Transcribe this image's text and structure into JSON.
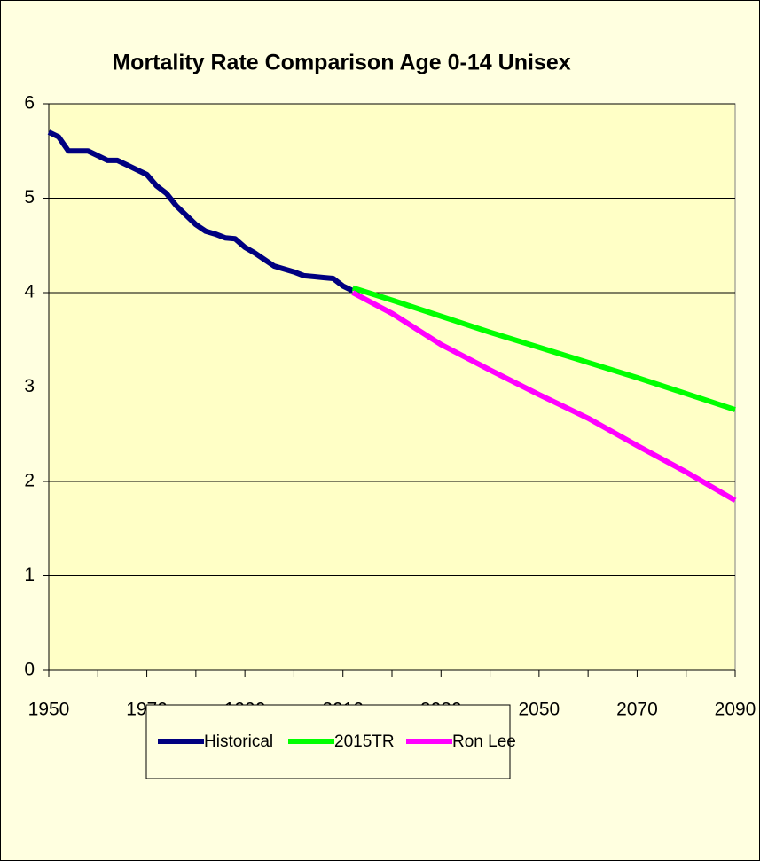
{
  "chart_data": {
    "type": "line",
    "title": "Mortality Rate Comparison Age 0-14 Unisex",
    "series": [
      {
        "name": "Historical",
        "color": "#000080",
        "x": [
          1950,
          1952,
          1954,
          1956,
          1958,
          1960,
          1962,
          1964,
          1966,
          1968,
          1970,
          1972,
          1974,
          1976,
          1978,
          1980,
          1982,
          1984,
          1986,
          1988,
          1990,
          1992,
          1994,
          1996,
          1998,
          2000,
          2002,
          2004,
          2006,
          2008,
          2010,
          2012
        ],
        "values": [
          5.7,
          5.65,
          5.5,
          5.5,
          5.5,
          5.45,
          5.4,
          5.4,
          5.35,
          5.3,
          5.25,
          5.13,
          5.05,
          4.92,
          4.82,
          4.72,
          4.65,
          4.62,
          4.58,
          4.57,
          4.48,
          4.42,
          4.35,
          4.28,
          4.25,
          4.22,
          4.18,
          4.17,
          4.16,
          4.15,
          4.07,
          4.02
        ]
      },
      {
        "name": "2015TR",
        "color": "#00ff00",
        "x": [
          2012,
          2020,
          2030,
          2040,
          2050,
          2060,
          2070,
          2080,
          2090
        ],
        "values": [
          4.05,
          3.92,
          3.75,
          3.58,
          3.42,
          3.26,
          3.1,
          2.93,
          2.76
        ]
      },
      {
        "name": "Ron Lee",
        "color": "#ff00ff",
        "x": [
          2012,
          2020,
          2030,
          2040,
          2050,
          2060,
          2070,
          2080,
          2090
        ],
        "values": [
          4.0,
          3.78,
          3.45,
          3.18,
          2.92,
          2.67,
          2.38,
          2.1,
          1.8
        ]
      }
    ],
    "xlim": [
      1950,
      2090
    ],
    "xticks": [
      1950,
      1970,
      1990,
      2010,
      2030,
      2050,
      2070,
      2090
    ],
    "xticks_minor": [
      1960,
      1980,
      2000,
      2020,
      2040,
      2060,
      2080
    ],
    "ylim": [
      0,
      6
    ],
    "yticks": [
      0,
      1,
      2,
      3,
      4,
      5,
      6
    ],
    "grid": true,
    "legend": "bottom"
  }
}
